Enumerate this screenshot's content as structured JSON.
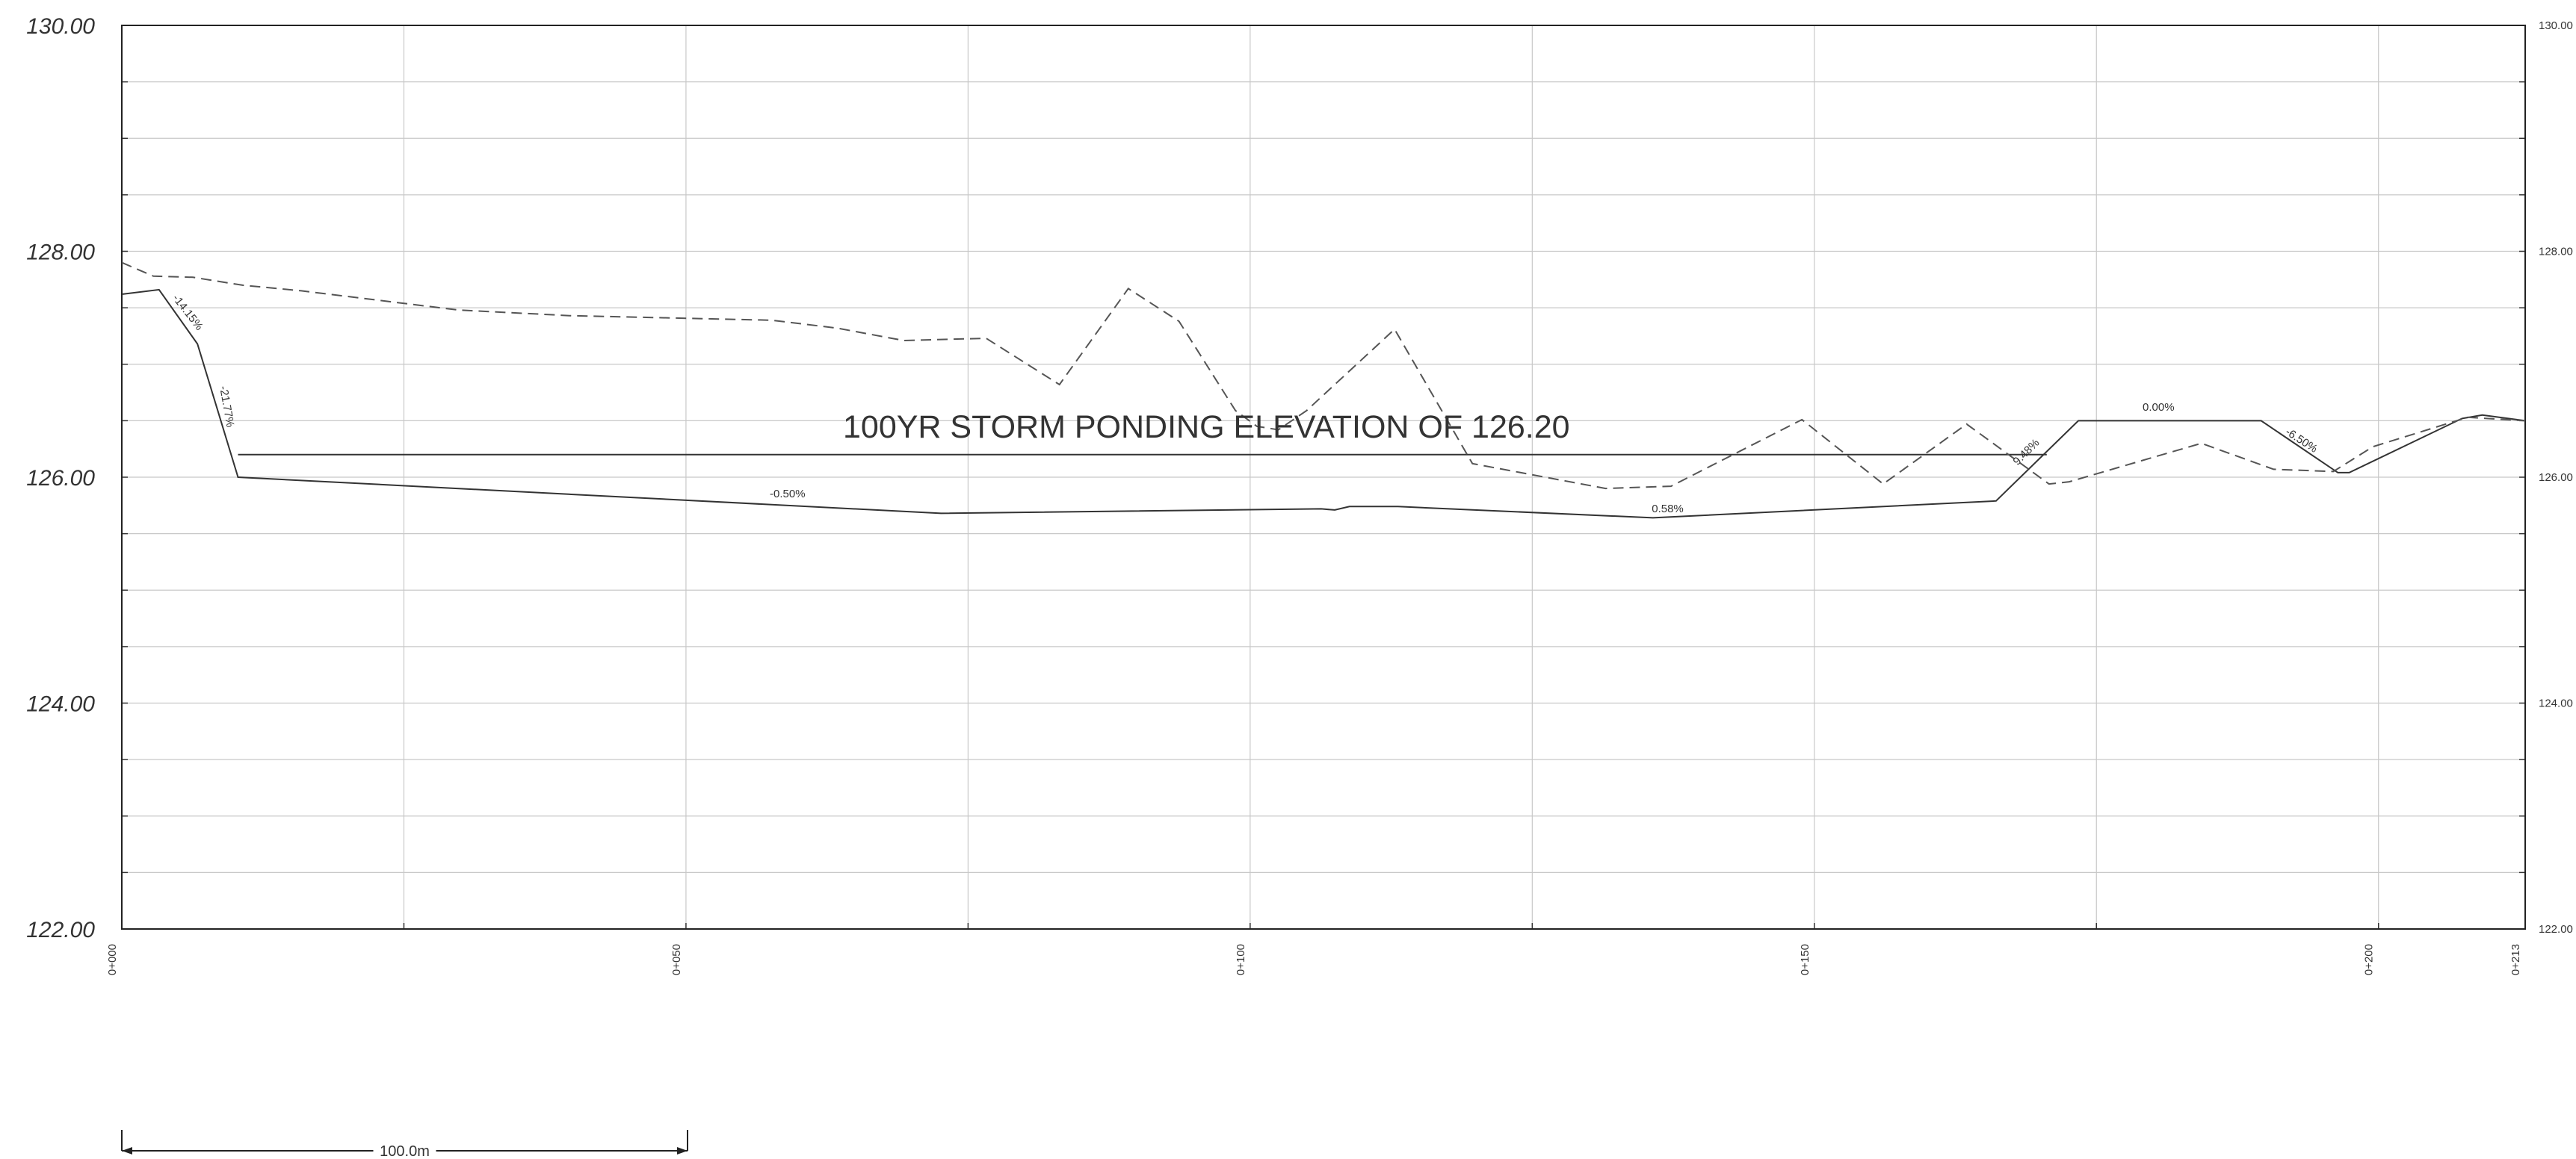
{
  "chart_data": {
    "type": "line",
    "title": "",
    "annotation": "100YR STORM PONDING ELEVATION OF 126.20",
    "y_axis": {
      "range": [
        122,
        130
      ],
      "ticks": [
        "122.00",
        "124.00",
        "126.00",
        "128.00",
        "130.00"
      ],
      "right_ticks": [
        "122.00",
        "124.00",
        "126.00",
        "128.00",
        "130.00"
      ]
    },
    "x_axis": {
      "range": [
        0,
        213
      ],
      "station_labels": [
        "0+000",
        "0+050",
        "0+100",
        "0+150",
        "0+200",
        "0+213"
      ],
      "gridlines_every": 25
    },
    "scale_bar": {
      "label": "100.0m",
      "length_m": 100
    },
    "ponding_elevation": 126.2,
    "series": [
      {
        "style": "solid",
        "points": [
          [
            0,
            127.62
          ],
          [
            3.3,
            127.66
          ],
          [
            6.7,
            127.18
          ],
          [
            10.3,
            126.0
          ],
          [
            72.6,
            125.68
          ],
          [
            106.3,
            125.72
          ],
          [
            107.5,
            125.71
          ],
          [
            108.8,
            125.74
          ],
          [
            113.1,
            125.74
          ],
          [
            135.7,
            125.64
          ],
          [
            166.1,
            125.79
          ],
          [
            173.4,
            126.5
          ],
          [
            189.6,
            126.5
          ],
          [
            196.4,
            126.04
          ],
          [
            197.4,
            126.04
          ],
          [
            207.4,
            126.52
          ],
          [
            209.2,
            126.55
          ],
          [
            213,
            126.5
          ]
        ]
      },
      {
        "style": "dashed",
        "points": [
          [
            0,
            127.9
          ],
          [
            2.8,
            127.78
          ],
          [
            6.3,
            127.77
          ],
          [
            10.7,
            127.7
          ],
          [
            15.9,
            127.65
          ],
          [
            29.8,
            127.48
          ],
          [
            39.7,
            127.43
          ],
          [
            57.6,
            127.39
          ],
          [
            63.4,
            127.32
          ],
          [
            69.3,
            127.21
          ],
          [
            76.6,
            127.23
          ],
          [
            83.1,
            126.82
          ],
          [
            89.2,
            127.67
          ],
          [
            93.7,
            127.38
          ],
          [
            98.7,
            126.59
          ],
          [
            100.6,
            126.45
          ],
          [
            102.5,
            126.42
          ],
          [
            105.0,
            126.59
          ],
          [
            112.8,
            127.31
          ],
          [
            119.7,
            126.12
          ],
          [
            131.5,
            125.9
          ],
          [
            137.3,
            125.92
          ],
          [
            148.9,
            126.51
          ],
          [
            156.1,
            125.94
          ],
          [
            163.5,
            126.47
          ],
          [
            170.8,
            125.94
          ],
          [
            172.6,
            125.96
          ],
          [
            184.3,
            126.3
          ],
          [
            190.7,
            126.07
          ],
          [
            196.0,
            126.05
          ],
          [
            199.5,
            126.27
          ],
          [
            207.9,
            126.53
          ],
          [
            213,
            126.5
          ]
        ]
      }
    ],
    "grade_labels": [
      {
        "text": "-14.15%",
        "x": 5.6,
        "y": 127.44,
        "angle": 52
      },
      {
        "text": "-21.77%",
        "x": 9.0,
        "y": 126.62,
        "angle": 80
      },
      {
        "text": "-0.50%",
        "x": 59.0,
        "y": 125.82,
        "angle": 0
      },
      {
        "text": "0.58%",
        "x": 137.0,
        "y": 125.69,
        "angle": 0
      },
      {
        "text": "9.48%",
        "x": 169.0,
        "y": 126.2,
        "angle": -45
      },
      {
        "text": "0.00%",
        "x": 180.5,
        "y": 126.59,
        "angle": 0
      },
      {
        "text": "-6.50%",
        "x": 193.0,
        "y": 126.3,
        "angle": 33
      }
    ]
  }
}
